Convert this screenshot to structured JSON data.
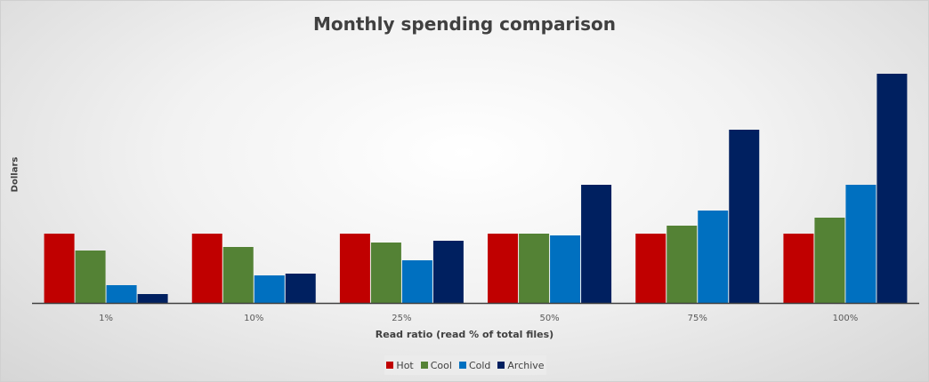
{
  "chart_data": {
    "type": "bar",
    "title": "Monthly spending comparison",
    "xlabel": "Read ratio (read % of total files)",
    "ylabel": "Dollars",
    "categories": [
      "1%",
      "10%",
      "25%",
      "50%",
      "75%",
      "100%"
    ],
    "series": [
      {
        "name": "Hot",
        "color": "#c00000",
        "values": [
          78,
          78,
          78,
          78,
          78,
          78
        ]
      },
      {
        "name": "Cool",
        "color": "#548235",
        "values": [
          59,
          63,
          68,
          78,
          87,
          96
        ]
      },
      {
        "name": "Cold",
        "color": "#0070c0",
        "values": [
          20,
          31,
          48,
          76,
          104,
          133
        ]
      },
      {
        "name": "Archive",
        "color": "#002060",
        "values": [
          10,
          33,
          70,
          133,
          195,
          258
        ]
      }
    ],
    "ylim": [
      0,
      270
    ],
    "y_tick_labels_shown": false,
    "grid": false,
    "legend": "bottom"
  }
}
